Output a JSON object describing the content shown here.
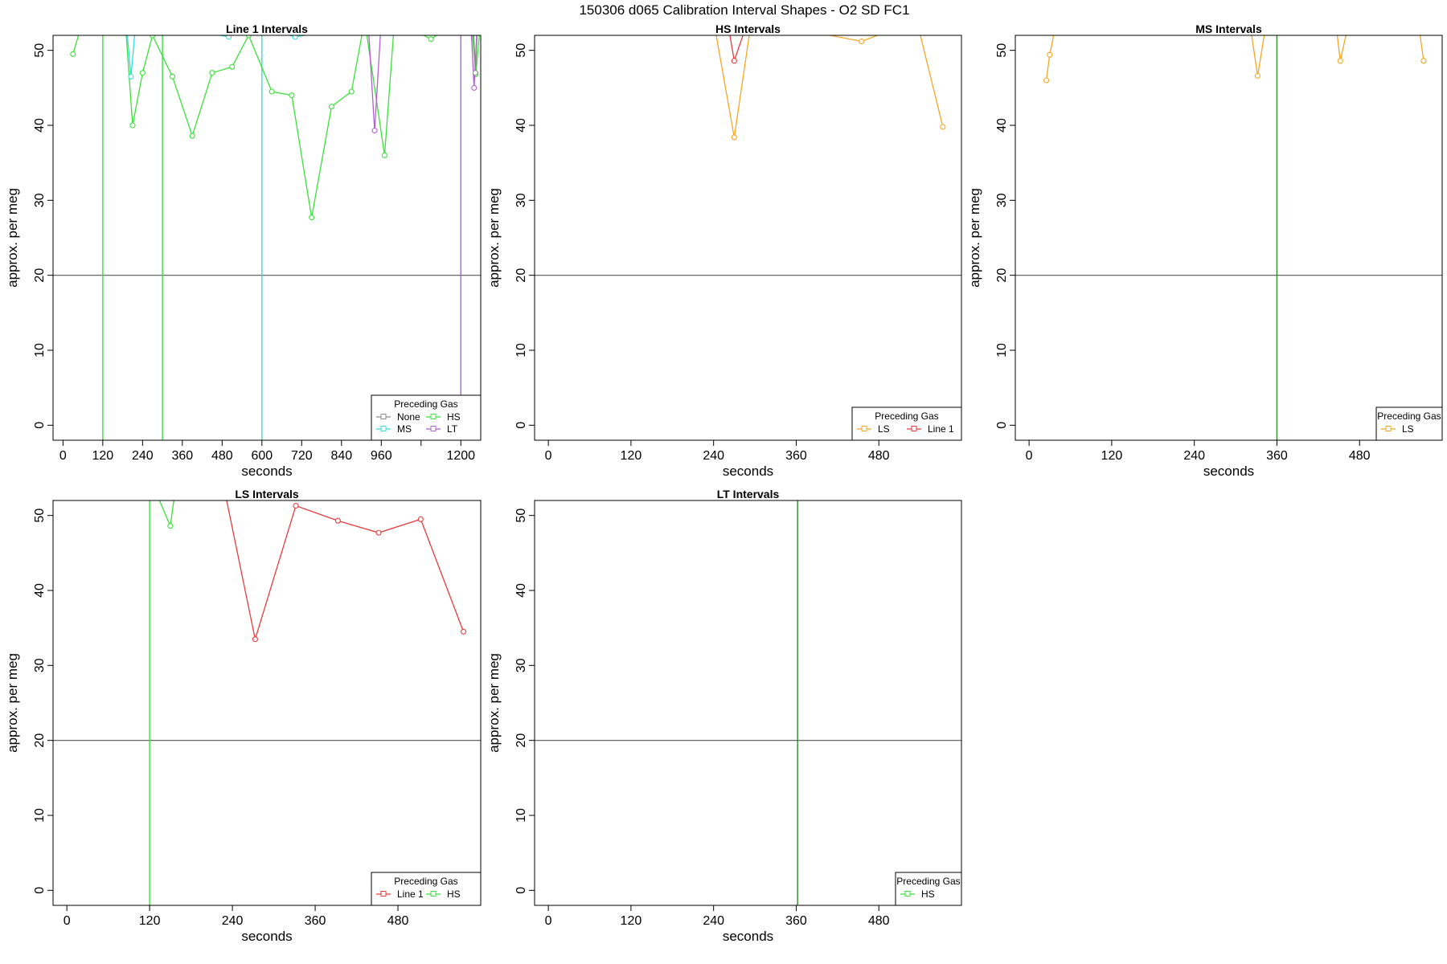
{
  "suptitle": "150306   d065   Calibration Interval Shapes - O2 SD FC1",
  "colors": {
    "None": "#8c8c8c",
    "HS": "#3be03b",
    "MS": "#35dcdc",
    "LT": "#b15fd6",
    "LS": "#f5a623",
    "Line 1": "#e53c3c",
    "vline_darkgreen": "#2e8b2e",
    "hline": "#555555"
  },
  "chart_data": [
    {
      "type": "line",
      "title": "Line 1 Intervals",
      "xlabel": "seconds",
      "ylabel": "approx. per meg",
      "xlim": [
        -30,
        1260
      ],
      "ylim": [
        -2,
        52
      ],
      "xticks": [
        0,
        120,
        240,
        360,
        480,
        600,
        720,
        840,
        960,
        1080,
        1200
      ],
      "xtick_labels": [
        "0",
        "120",
        "240",
        "360",
        "480",
        "600",
        "720",
        "840",
        "960",
        "",
        "1200"
      ],
      "yticks": [
        0,
        10,
        20,
        30,
        40,
        50
      ],
      "hline": 20,
      "vlines": [
        {
          "x": 120,
          "color": "HS"
        },
        {
          "x": 300,
          "color": "HS"
        },
        {
          "x": 600,
          "color": "MS"
        },
        {
          "x": 1200,
          "color": "LT"
        }
      ],
      "legend": {
        "title": "Preceding Gas",
        "position": "bottom-right",
        "columns": 2,
        "entries": [
          "None",
          "HS",
          "MS",
          "LT"
        ]
      },
      "series": [
        {
          "name": "HS",
          "x": [
            30,
            60,
            130,
            190,
            210,
            240,
            270,
            330,
            390,
            450,
            510,
            560,
            630,
            690,
            750,
            810,
            870,
            910,
            970,
            1000,
            1110,
            1160,
            1230,
            1245,
            1260
          ],
          "y": [
            49.5,
            54,
            55,
            52.5,
            40,
            47,
            52,
            46.5,
            38.6,
            47,
            47.8,
            52,
            44.5,
            44,
            27.7,
            42.5,
            44.5,
            54,
            36,
            54,
            51.5,
            53,
            55,
            46.8,
            54
          ]
        },
        {
          "name": "MS",
          "x": [
            190,
            205,
            220,
            500,
            520,
            700,
            760
          ],
          "y": [
            54,
            46.5,
            54,
            51.8,
            54,
            51.8,
            52.2
          ]
        },
        {
          "name": "LT",
          "x": [
            920,
            940,
            960,
            1230,
            1240,
            1250
          ],
          "y": [
            54,
            39.3,
            54,
            54,
            45,
            54
          ]
        },
        {
          "name": "None",
          "x": [
            1238,
            1244,
            1250
          ],
          "y": [
            53,
            47,
            53
          ]
        }
      ]
    },
    {
      "type": "line",
      "title": "HS Intervals",
      "xlabel": "seconds",
      "ylabel": "approx. per meg",
      "xlim": [
        -20,
        600
      ],
      "ylim": [
        -2,
        52
      ],
      "xticks": [
        0,
        120,
        240,
        360,
        480
      ],
      "xtick_labels": [
        "0",
        "120",
        "240",
        "360",
        "480"
      ],
      "yticks": [
        0,
        10,
        20,
        30,
        40,
        50
      ],
      "hline": 20,
      "vlines": [],
      "legend": {
        "title": "Preceding Gas",
        "position": "bottom-right",
        "columns": 2,
        "entries": [
          "LS",
          "Line 1"
        ]
      },
      "series": [
        {
          "name": "LS",
          "x": [
            240,
            270,
            295,
            455,
            535,
            573
          ],
          "y": [
            54,
            38.4,
            54,
            51.2,
            54,
            39.8
          ]
        },
        {
          "name": "Line 1",
          "x": [
            260,
            270,
            290
          ],
          "y": [
            54,
            48.6,
            54
          ]
        }
      ]
    },
    {
      "type": "line",
      "title": "MS Intervals",
      "xlabel": "seconds",
      "ylabel": "approx. per meg",
      "xlim": [
        -20,
        600
      ],
      "ylim": [
        -2,
        52
      ],
      "xticks": [
        0,
        120,
        240,
        360,
        480
      ],
      "xtick_labels": [
        "0",
        "120",
        "240",
        "360",
        "480"
      ],
      "yticks": [
        0,
        10,
        20,
        30,
        40,
        50
      ],
      "hline": 20,
      "vlines": [
        {
          "x": 360,
          "color": "vline_darkgreen"
        }
      ],
      "legend": {
        "title": "Preceding Gas",
        "position": "bottom-right",
        "columns": 1,
        "entries": [
          "LS"
        ]
      },
      "series": [
        {
          "name": "LS",
          "x": [
            25,
            30,
            40,
            320,
            332,
            345,
            445,
            452,
            465,
            565,
            573
          ],
          "y": [
            46,
            49.4,
            54,
            54,
            46.6,
            54,
            54,
            48.6,
            54,
            54,
            48.6
          ]
        }
      ]
    },
    {
      "type": "line",
      "title": "LS Intervals",
      "xlabel": "seconds",
      "ylabel": "approx. per meg",
      "xlim": [
        -20,
        600
      ],
      "ylim": [
        -2,
        52
      ],
      "xticks": [
        0,
        120,
        240,
        360,
        480
      ],
      "xtick_labels": [
        "0",
        "120",
        "240",
        "360",
        "480"
      ],
      "yticks": [
        0,
        10,
        20,
        30,
        40,
        50
      ],
      "hline": 20,
      "vlines": [
        {
          "x": 120,
          "color": "HS"
        }
      ],
      "legend": {
        "title": "Preceding Gas",
        "position": "bottom-right",
        "columns": 2,
        "entries": [
          "Line 1",
          "HS"
        ]
      },
      "series": [
        {
          "name": "Line 1",
          "x": [
            225,
            273,
            332,
            393,
            452,
            513,
            575
          ],
          "y": [
            55,
            33.5,
            51.3,
            49.3,
            47.7,
            49.5,
            34.5
          ]
        },
        {
          "name": "HS",
          "x": [
            125,
            150,
            158
          ],
          "y": [
            54,
            48.6,
            54
          ]
        }
      ]
    },
    {
      "type": "line",
      "title": "LT Intervals",
      "xlabel": "seconds",
      "ylabel": "approx. per meg",
      "xlim": [
        -20,
        600
      ],
      "ylim": [
        -2,
        52
      ],
      "xticks": [
        0,
        120,
        240,
        360,
        480
      ],
      "xtick_labels": [
        "0",
        "120",
        "240",
        "360",
        "480"
      ],
      "yticks": [
        0,
        10,
        20,
        30,
        40,
        50
      ],
      "hline": 20,
      "vlines": [
        {
          "x": 362,
          "color": "vline_darkgreen"
        }
      ],
      "legend": {
        "title": "Preceding Gas",
        "position": "bottom-right",
        "columns": 1,
        "entries": [
          "HS"
        ]
      },
      "series": []
    }
  ]
}
